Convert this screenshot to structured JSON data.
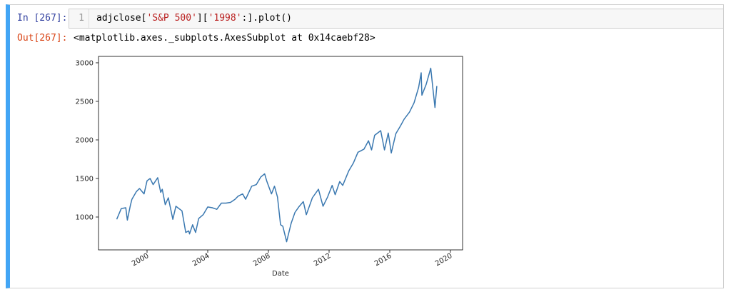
{
  "cell": {
    "in_prompt": "In [267]:",
    "line_number": "1",
    "code": [
      "adjclose[",
      "'S&P 500'",
      "][",
      "'1998'",
      ":].plot()"
    ],
    "out_prompt": "Out[267]:",
    "output": "<matplotlib.axes._subplots.AxesSubplot at 0x14caebf28>"
  },
  "chart_data": {
    "type": "line",
    "xlabel": "Date",
    "color": "#3a78b0",
    "x": [
      1998.0,
      1998.3,
      1998.6,
      1998.7,
      1998.9,
      1999.0,
      1999.3,
      1999.5,
      1999.8,
      2000.0,
      2000.2,
      2000.4,
      2000.7,
      2000.9,
      2001.0,
      2001.2,
      2001.4,
      2001.7,
      2001.9,
      2002.1,
      2002.3,
      2002.55,
      2002.75,
      2002.8,
      2003.0,
      2003.2,
      2003.4,
      2003.7,
      2004.0,
      2004.3,
      2004.6,
      2004.9,
      2005.2,
      2005.5,
      2005.8,
      2006.0,
      2006.3,
      2006.5,
      2006.9,
      2007.2,
      2007.5,
      2007.75,
      2007.9,
      2008.2,
      2008.4,
      2008.6,
      2008.8,
      2008.95,
      2009.2,
      2009.5,
      2009.75,
      2010.0,
      2010.3,
      2010.5,
      2010.9,
      2011.3,
      2011.6,
      2011.9,
      2012.2,
      2012.4,
      2012.7,
      2012.9,
      2013.3,
      2013.6,
      2013.9,
      2014.3,
      2014.6,
      2014.8,
      2015.0,
      2015.4,
      2015.65,
      2015.9,
      2016.1,
      2016.4,
      2016.7,
      2016.95,
      2017.3,
      2017.6,
      2017.9,
      2018.07,
      2018.12,
      2018.4,
      2018.7,
      2018.85,
      2018.98,
      2019.1
    ],
    "values": [
      970,
      1110,
      1120,
      960,
      1150,
      1230,
      1330,
      1370,
      1300,
      1470,
      1500,
      1420,
      1510,
      1320,
      1360,
      1160,
      1250,
      970,
      1140,
      1110,
      1080,
      800,
      820,
      780,
      900,
      800,
      980,
      1030,
      1130,
      1120,
      1100,
      1180,
      1180,
      1190,
      1230,
      1270,
      1300,
      1230,
      1400,
      1420,
      1520,
      1560,
      1460,
      1300,
      1400,
      1260,
      900,
      880,
      680,
      920,
      1060,
      1130,
      1200,
      1030,
      1250,
      1360,
      1140,
      1260,
      1410,
      1290,
      1460,
      1410,
      1600,
      1700,
      1840,
      1880,
      1990,
      1870,
      2060,
      2120,
      1870,
      2090,
      1830,
      2080,
      2180,
      2270,
      2360,
      2480,
      2680,
      2870,
      2580,
      2720,
      2930,
      2650,
      2420,
      2700
    ],
    "xlim": [
      1996.8,
      2020.8
    ],
    "xticks": [
      2000,
      2004,
      2008,
      2012,
      2016,
      2020
    ],
    "ylim": [
      574,
      3083
    ],
    "yticks": [
      1000,
      1500,
      2000,
      2500,
      3000
    ]
  }
}
